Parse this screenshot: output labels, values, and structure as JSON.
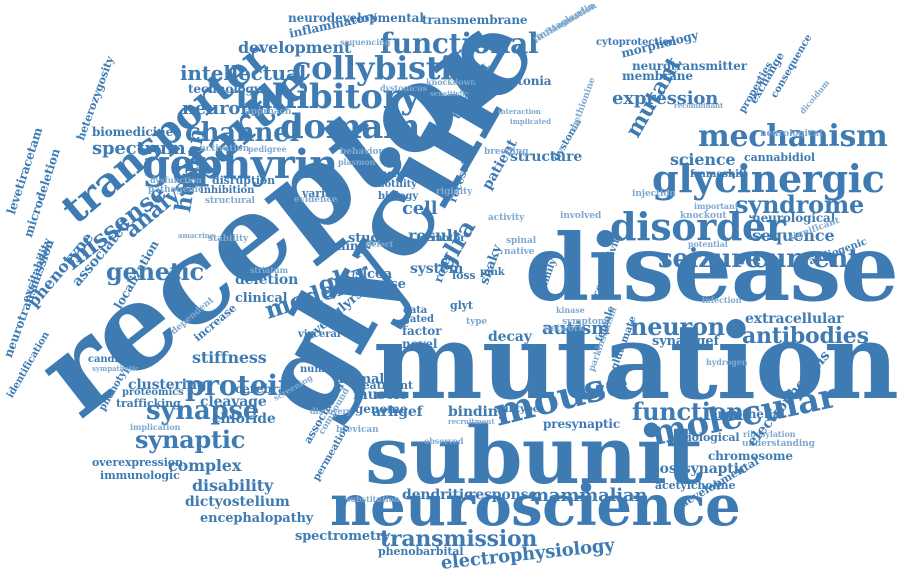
{
  "colors": {
    "primary": "#3f7bb3",
    "light": "#7fa9d0",
    "background": "#ffffff"
  },
  "words": [
    "receptor",
    "glycine",
    "mutation",
    "disease",
    "subunit",
    "neuroscience",
    "startle",
    "transporter",
    "gephyrin",
    "domain",
    "inhibitory",
    "collybistin",
    "functional",
    "disorder",
    "glycinergic",
    "mechanism",
    "mouse",
    "molecular",
    "protein",
    "seizure",
    "current",
    "syndrome",
    "channel",
    "synapse",
    "synaptic",
    "function",
    "neuron",
    "missense",
    "genetic",
    "human",
    "analysis",
    "antibodies",
    "transmission",
    "electrophysiology",
    "mammalian",
    "intellectual",
    "neuronal",
    "model",
    "glyr",
    "glra",
    "mutant",
    "expression",
    "sequence",
    "science",
    "spectrum",
    "development",
    "neurodevelopmental",
    "transmembrane",
    "morphology",
    "membrane",
    "neurotransmitter",
    "hypertonia",
    "inflammatory",
    "technology",
    "biomedicine",
    "phenotype",
    "associated",
    "levetiracetam",
    "microdeletion",
    "neurotransmission",
    "excitability",
    "heterozygosity",
    "neurological",
    "extracellular",
    "synarfgef",
    "postsynaptic",
    "presynaptic",
    "dendritic",
    "response",
    "disability",
    "dictyostelium",
    "encephalopathy",
    "complex",
    "spectrometry",
    "phenobarbital",
    "autism",
    "decay",
    "cell",
    "cause",
    "slc6a",
    "deletion",
    "clinical",
    "muscle",
    "genome",
    "binding",
    "subtype",
    "animal",
    "treatment",
    "cleavage",
    "chloride",
    "stiffness",
    "increase",
    "clustering",
    "trafficking",
    "proteomics",
    "candidate",
    "localization",
    "cerebral",
    "endothelial",
    "chromosome",
    "biological",
    "acetylcholine",
    "cannabidiol",
    "exchange",
    "consequence",
    "properties",
    "cytoprotection",
    "prostaglandin",
    "inflammation",
    "sequencing",
    "approach",
    "knockdown",
    "dystonicus",
    "sensitivity",
    "structure",
    "patient",
    "recessive",
    "transport",
    "breeding",
    "dystonia",
    "methionine",
    "frameshift",
    "injection",
    "knockout",
    "important",
    "neurological",
    "significant",
    "audiogenic",
    "potential",
    "infection",
    "hydrogen",
    "parkinsonism",
    "glutamate",
    "connectivity",
    "female",
    "symptom",
    "shaky",
    "glyt",
    "loss",
    "pink",
    "system",
    "study",
    "result",
    "canine",
    "variant",
    "evidence",
    "motility",
    "biology",
    "clueless",
    "rigidity",
    "disruption",
    "inhibition",
    "structural",
    "pathogenic",
    "dysfunction",
    "activation",
    "pedigree",
    "behavior",
    "plasmon",
    "stability",
    "striatum",
    "severe",
    "visceral",
    "novel",
    "factor",
    "gated",
    "arhgef",
    "glyrs",
    "role",
    "reveal",
    "defect",
    "family",
    "network",
    "kinase",
    "type",
    "data",
    "motor",
    "spinal",
    "native",
    "activity",
    "involved",
    "identification",
    "immunologic",
    "overexpression",
    "phenotypic",
    "implication",
    "discovery",
    "screening",
    "brevican",
    "permeation",
    "substitution",
    "observed",
    "association",
    "compound",
    "recruitment",
    "interaction",
    "implicated",
    "recombinant",
    "dicoidum",
    "ribosylation",
    "understanding",
    "developmental",
    "electrophoresis",
    "number",
    "protein",
    "amacrine",
    "dependent",
    "cytoarchitectonic",
    "sympathetic"
  ]
}
